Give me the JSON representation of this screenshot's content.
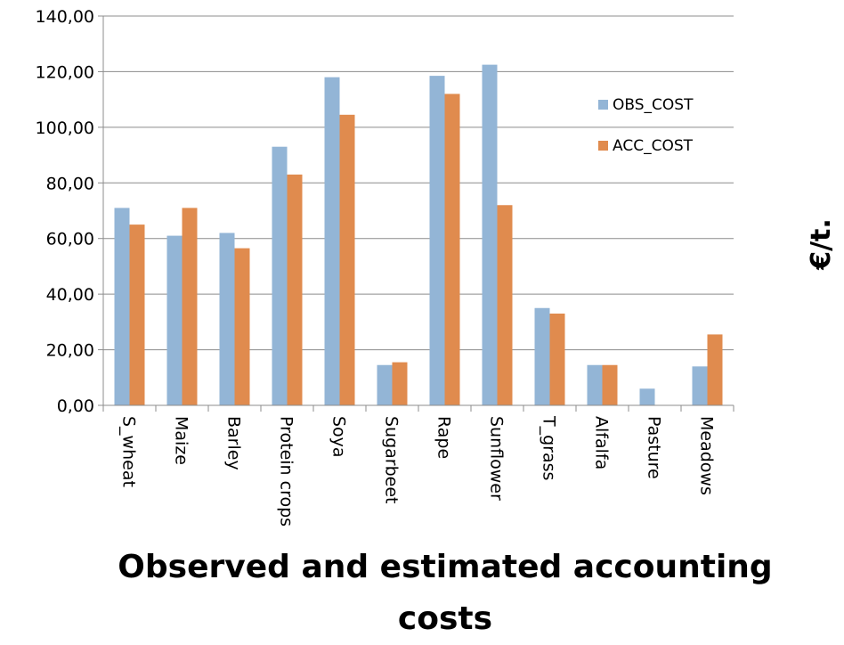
{
  "chart_data": {
    "type": "bar",
    "title": "Observed and estimated accounting costs",
    "xlabel": "",
    "ylabel": "€/t.",
    "ylim": [
      0,
      140
    ],
    "ytick_step": 20,
    "ytick_labels": [
      "0,00",
      "20,00",
      "40,00",
      "60,00",
      "80,00",
      "100,00",
      "120,00",
      "140,00"
    ],
    "grid": true,
    "legend_position": "right",
    "categories": [
      "S_wheat",
      "Maize",
      "Barley",
      "Protein crops",
      "Soya",
      "Sugarbeet",
      "Rape",
      "Sunflower",
      "T_grass",
      "Alfalfa",
      "Pasture",
      "Meadows"
    ],
    "series": [
      {
        "name": "OBS_COST",
        "color": "#93B5D6",
        "values": [
          71.0,
          61.0,
          62.0,
          93.0,
          118.0,
          14.5,
          118.5,
          122.5,
          35.0,
          14.5,
          6.0,
          14.0
        ]
      },
      {
        "name": "ACC_COST",
        "color": "#E08B4E",
        "values": [
          65.0,
          71.0,
          56.5,
          83.0,
          104.5,
          15.5,
          112.0,
          72.0,
          33.0,
          14.5,
          0,
          25.5
        ]
      }
    ]
  }
}
